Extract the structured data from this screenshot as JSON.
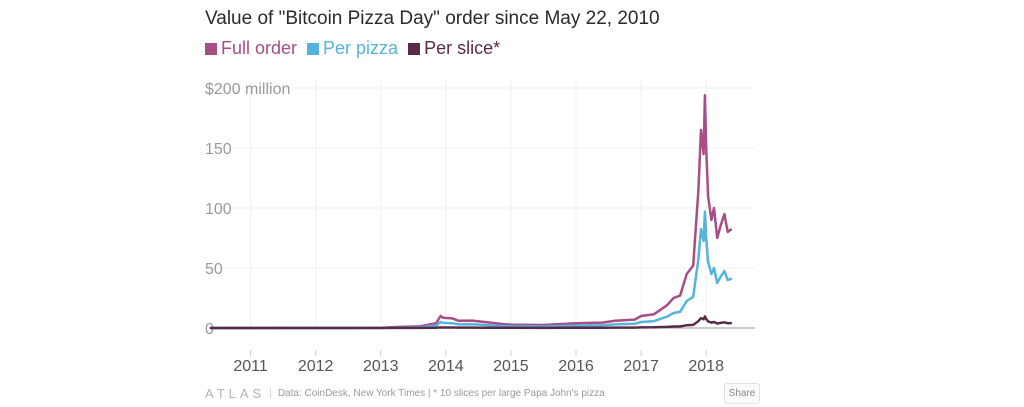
{
  "chart_data": {
    "type": "line",
    "title": "Value of \"Bitcoin Pizza Day\" order since May 22, 2010",
    "y_tick_labels": [
      "$200 million",
      "150",
      "100",
      "50",
      "0"
    ],
    "y_ticks": [
      200,
      150,
      100,
      50,
      0
    ],
    "ylim": [
      0,
      200
    ],
    "x_tick_labels": [
      "2011",
      "2012",
      "2013",
      "2014",
      "2015",
      "2016",
      "2017",
      "2018"
    ],
    "x_ticks": [
      2011,
      2012,
      2013,
      2014,
      2015,
      2016,
      2017,
      2018
    ],
    "xlim": [
      2010.3,
      2018.75
    ],
    "grid": true,
    "legend_placement": "top-left",
    "x": [
      2010.39,
      2011.0,
      2011.5,
      2012.0,
      2012.5,
      2013.0,
      2013.3,
      2013.6,
      2013.85,
      2013.92,
      2013.96,
      2014.1,
      2014.2,
      2014.4,
      2014.6,
      2014.9,
      2015.0,
      2015.5,
      2016.0,
      2016.4,
      2016.6,
      2016.9,
      2017.0,
      2017.2,
      2017.4,
      2017.5,
      2017.6,
      2017.7,
      2017.8,
      2017.88,
      2017.92,
      2017.96,
      2017.98,
      2018.0,
      2018.03,
      2018.08,
      2018.12,
      2018.17,
      2018.22,
      2018.28,
      2018.33,
      2018.38
    ],
    "series": [
      {
        "name": "Full order",
        "color": "#a84e86",
        "values": [
          0.0,
          0.0,
          0.1,
          0.1,
          0.1,
          0.2,
          0.9,
          1.3,
          4.0,
          10.0,
          8.5,
          8.0,
          6.0,
          6.2,
          5.0,
          3.2,
          2.8,
          2.5,
          4.0,
          4.5,
          6.0,
          7.0,
          10.0,
          11.5,
          19.0,
          25.0,
          27.0,
          45.0,
          52.0,
          115.0,
          165.0,
          145.0,
          194.0,
          150.0,
          110.0,
          90.0,
          100.0,
          75.0,
          85.0,
          95.0,
          80.0,
          82.0
        ]
      },
      {
        "name": "Per pizza",
        "color": "#55b3dc",
        "values": [
          0.0,
          0.0,
          0.05,
          0.05,
          0.05,
          0.1,
          0.45,
          0.65,
          2.0,
          5.0,
          4.25,
          4.0,
          3.0,
          3.1,
          2.5,
          1.6,
          1.4,
          1.25,
          2.0,
          2.25,
          3.0,
          3.5,
          5.0,
          5.75,
          9.5,
          12.5,
          13.5,
          22.5,
          26.0,
          57.5,
          82.5,
          72.5,
          97.0,
          75.0,
          55.0,
          45.0,
          50.0,
          37.5,
          42.5,
          47.5,
          40.0,
          41.0
        ]
      },
      {
        "name": "Per slice*",
        "color": "#5a2a4a",
        "values": [
          0.0,
          0.0,
          0.005,
          0.005,
          0.005,
          0.01,
          0.045,
          0.065,
          0.2,
          0.5,
          0.425,
          0.4,
          0.3,
          0.31,
          0.25,
          0.16,
          0.14,
          0.125,
          0.2,
          0.225,
          0.3,
          0.35,
          0.5,
          0.575,
          0.95,
          1.25,
          1.35,
          2.25,
          2.6,
          5.75,
          8.25,
          7.25,
          9.7,
          7.5,
          5.5,
          4.5,
          5.0,
          3.75,
          4.25,
          4.75,
          4.0,
          4.1
        ]
      }
    ]
  },
  "footer": {
    "brand": "ATLAS",
    "separator": "|",
    "source_text": "Data: CoinDesk, New York Times | * 10 slices per large Papa John's pizza",
    "share_label": "Share"
  }
}
